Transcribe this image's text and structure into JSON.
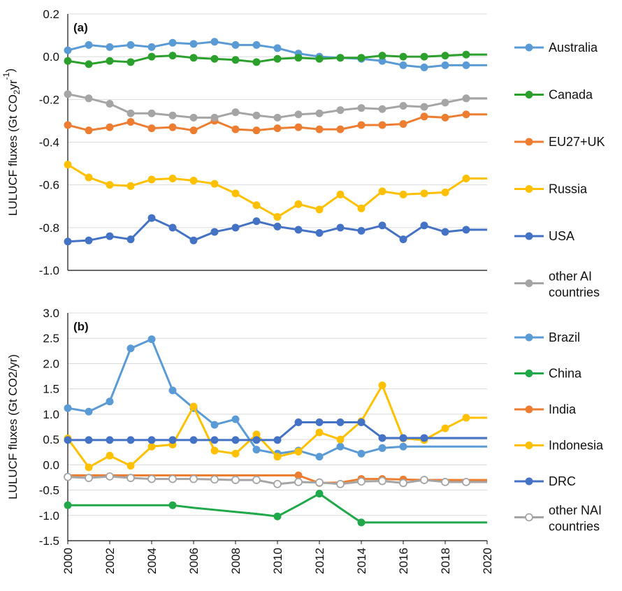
{
  "chart_data": [
    {
      "type": "line",
      "panel_label": "(a)",
      "ylabel": "LULUCF fluxes (Gt CO",
      "ylabel_sub": "2",
      "ylabel_mid": "yr",
      "ylabel_sup": "-1",
      "ylabel_end": ")",
      "ylim": [
        -1.0,
        0.2
      ],
      "yticks": [
        "0.2",
        "0.0",
        "-0.2",
        "-0.4",
        "-0.6",
        "-0.8",
        "-1.0"
      ],
      "ytick_values": [
        0.2,
        0.0,
        -0.2,
        -0.4,
        -0.6,
        -0.8,
        -1.0
      ],
      "x": [
        2000,
        2001,
        2002,
        2003,
        2004,
        2005,
        2006,
        2007,
        2008,
        2009,
        2010,
        2011,
        2012,
        2013,
        2014,
        2015,
        2016,
        2017,
        2018,
        2019,
        2020
      ],
      "xlim": [
        2000,
        2020
      ],
      "grid": true,
      "legend_position": "right",
      "series": [
        {
          "name": "Australia",
          "color": "#5b9bd5",
          "markers": [
            true,
            true,
            true,
            true,
            true,
            true,
            true,
            true,
            true,
            true,
            true,
            true,
            true,
            true,
            true,
            true,
            true,
            true,
            true,
            true,
            false
          ],
          "values": [
            0.03,
            0.055,
            0.045,
            0.055,
            0.045,
            0.065,
            0.06,
            0.07,
            0.055,
            0.055,
            0.04,
            0.015,
            0.0,
            -0.005,
            -0.01,
            -0.02,
            -0.04,
            -0.05,
            -0.04,
            -0.04,
            -0.04
          ]
        },
        {
          "name": "Canada",
          "color": "#2ca02c",
          "markers": [
            true,
            true,
            true,
            true,
            true,
            true,
            true,
            true,
            true,
            true,
            true,
            true,
            true,
            true,
            true,
            true,
            true,
            true,
            true,
            true,
            false
          ],
          "values": [
            -0.02,
            -0.035,
            -0.02,
            -0.025,
            0.0,
            0.005,
            -0.005,
            -0.01,
            -0.015,
            -0.025,
            -0.01,
            -0.005,
            -0.01,
            -0.005,
            -0.005,
            0.005,
            0.0,
            0.0,
            0.005,
            0.01,
            0.01
          ]
        },
        {
          "name": "EU27+UK",
          "color": "#ed7d31",
          "markers": [
            true,
            true,
            true,
            true,
            true,
            true,
            true,
            true,
            true,
            true,
            true,
            true,
            true,
            true,
            true,
            true,
            true,
            true,
            true,
            true,
            false
          ],
          "values": [
            -0.32,
            -0.345,
            -0.33,
            -0.305,
            -0.335,
            -0.33,
            -0.345,
            -0.3,
            -0.34,
            -0.345,
            -0.335,
            -0.33,
            -0.34,
            -0.34,
            -0.32,
            -0.32,
            -0.315,
            -0.28,
            -0.285,
            -0.27,
            -0.27
          ]
        },
        {
          "name": "Russia",
          "color": "#ffc000",
          "markers": [
            true,
            true,
            true,
            true,
            true,
            true,
            true,
            true,
            true,
            true,
            true,
            true,
            true,
            true,
            true,
            true,
            true,
            true,
            true,
            true,
            false
          ],
          "values": [
            -0.505,
            -0.565,
            -0.6,
            -0.605,
            -0.575,
            -0.57,
            -0.58,
            -0.595,
            -0.64,
            -0.695,
            -0.75,
            -0.69,
            -0.715,
            -0.645,
            -0.71,
            -0.63,
            -0.645,
            -0.64,
            -0.635,
            -0.57,
            -0.57
          ]
        },
        {
          "name": "USA",
          "color": "#4472c4",
          "markers": [
            true,
            true,
            true,
            true,
            true,
            true,
            true,
            true,
            true,
            true,
            true,
            true,
            true,
            true,
            true,
            true,
            true,
            true,
            true,
            true,
            false
          ],
          "values": [
            -0.865,
            -0.86,
            -0.84,
            -0.855,
            -0.755,
            -0.8,
            -0.86,
            -0.82,
            -0.8,
            -0.77,
            -0.795,
            -0.81,
            -0.825,
            -0.8,
            -0.815,
            -0.79,
            -0.855,
            -0.79,
            -0.82,
            -0.81,
            -0.81
          ]
        },
        {
          "name": "other AI countries",
          "name_lines": [
            "other AI",
            "countries"
          ],
          "color": "#a5a5a5",
          "markers": [
            true,
            true,
            true,
            true,
            true,
            true,
            true,
            true,
            true,
            true,
            true,
            true,
            true,
            true,
            true,
            true,
            true,
            true,
            true,
            true,
            false
          ],
          "values": [
            -0.175,
            -0.195,
            -0.22,
            -0.265,
            -0.265,
            -0.275,
            -0.285,
            -0.285,
            -0.26,
            -0.275,
            -0.285,
            -0.27,
            -0.265,
            -0.25,
            -0.24,
            -0.245,
            -0.23,
            -0.235,
            -0.215,
            -0.195,
            -0.195
          ]
        }
      ]
    },
    {
      "type": "line",
      "panel_label": "(b)",
      "ylabel": "LULUCF fluxes (Gt CO2/yr)",
      "ylim": [
        -1.5,
        3.0
      ],
      "yticks": [
        "3.0",
        "2.5",
        "2.0",
        "1.5",
        "1.0",
        "0.5",
        "0.0",
        "-0.5",
        "-1.0",
        "-1.5"
      ],
      "ytick_values": [
        3.0,
        2.5,
        2.0,
        1.5,
        1.0,
        0.5,
        0.0,
        -0.5,
        -1.0,
        -1.5
      ],
      "x": [
        2000,
        2001,
        2002,
        2003,
        2004,
        2005,
        2006,
        2007,
        2008,
        2009,
        2010,
        2011,
        2012,
        2013,
        2014,
        2015,
        2016,
        2017,
        2018,
        2019,
        2020
      ],
      "xlim": [
        2000,
        2020
      ],
      "xticks": [
        "2000",
        "2002",
        "2004",
        "2006",
        "2008",
        "2010",
        "2012",
        "2014",
        "2016",
        "2018",
        "2020"
      ],
      "xtick_values": [
        2000,
        2002,
        2004,
        2006,
        2008,
        2010,
        2012,
        2014,
        2016,
        2018,
        2020
      ],
      "grid": true,
      "legend_position": "right",
      "series": [
        {
          "name": "Brazil",
          "color": "#5b9bd5",
          "markers": [
            true,
            true,
            true,
            true,
            true,
            true,
            true,
            true,
            true,
            true,
            true,
            true,
            true,
            true,
            true,
            true,
            true,
            false,
            false,
            false,
            false
          ],
          "values": [
            1.12,
            1.05,
            1.25,
            2.3,
            2.48,
            1.47,
            1.12,
            0.79,
            0.9,
            0.3,
            0.22,
            0.28,
            0.16,
            0.36,
            0.22,
            0.33,
            0.36,
            0.36,
            0.36,
            0.36,
            0.36
          ]
        },
        {
          "name": "China",
          "color": "#20a84a",
          "markers": [
            true,
            false,
            false,
            false,
            false,
            true,
            false,
            false,
            false,
            false,
            true,
            false,
            true,
            false,
            true,
            false,
            false,
            false,
            false,
            false,
            false
          ],
          "values": [
            -0.8,
            -0.8,
            -0.8,
            -0.8,
            -0.8,
            -0.8,
            -0.85,
            -0.89,
            -0.93,
            -0.97,
            -1.02,
            -0.8,
            -0.57,
            -0.86,
            -1.14,
            -1.14,
            -1.14,
            -1.14,
            -1.14,
            -1.14,
            -1.14
          ]
        },
        {
          "name": "India",
          "color": "#ed7d31",
          "markers": [
            false,
            false,
            false,
            false,
            false,
            false,
            false,
            false,
            false,
            false,
            false,
            true,
            true,
            false,
            true,
            true,
            true,
            false,
            false,
            false,
            false
          ],
          "values": [
            -0.21,
            -0.21,
            -0.21,
            -0.21,
            -0.21,
            -0.21,
            -0.21,
            -0.21,
            -0.21,
            -0.21,
            -0.21,
            -0.21,
            -0.36,
            -0.35,
            -0.28,
            -0.28,
            -0.29,
            -0.3,
            -0.3,
            -0.3,
            -0.3
          ]
        },
        {
          "name": "Indonesia",
          "color": "#ffc000",
          "markers": [
            true,
            true,
            true,
            true,
            true,
            true,
            true,
            true,
            true,
            true,
            true,
            true,
            true,
            true,
            true,
            true,
            true,
            true,
            true,
            true,
            false
          ],
          "values": [
            0.52,
            -0.05,
            0.18,
            -0.02,
            0.36,
            0.4,
            1.15,
            0.28,
            0.22,
            0.6,
            0.16,
            0.26,
            0.64,
            0.5,
            0.86,
            1.57,
            0.52,
            0.49,
            0.72,
            0.93,
            0.93
          ]
        },
        {
          "name": "DRC",
          "color": "#4472c4",
          "markers": [
            true,
            true,
            true,
            true,
            true,
            true,
            true,
            true,
            true,
            true,
            true,
            true,
            true,
            true,
            true,
            true,
            true,
            true,
            false,
            false,
            false
          ],
          "values": [
            0.49,
            0.49,
            0.49,
            0.49,
            0.49,
            0.49,
            0.49,
            0.49,
            0.49,
            0.49,
            0.49,
            0.84,
            0.84,
            0.84,
            0.84,
            0.53,
            0.53,
            0.53,
            0.53,
            0.53,
            0.53
          ]
        },
        {
          "name": "other NAI countries",
          "name_lines": [
            "other NAI",
            "countries"
          ],
          "color": "#a5a5a5",
          "hollow": true,
          "markers": [
            true,
            true,
            true,
            true,
            true,
            true,
            true,
            true,
            true,
            true,
            true,
            true,
            true,
            true,
            true,
            true,
            true,
            true,
            true,
            true,
            false
          ],
          "values": [
            -0.24,
            -0.26,
            -0.23,
            -0.26,
            -0.28,
            -0.28,
            -0.28,
            -0.29,
            -0.3,
            -0.3,
            -0.38,
            -0.34,
            -0.35,
            -0.38,
            -0.33,
            -0.32,
            -0.36,
            -0.3,
            -0.34,
            -0.34,
            -0.34
          ]
        }
      ]
    }
  ]
}
